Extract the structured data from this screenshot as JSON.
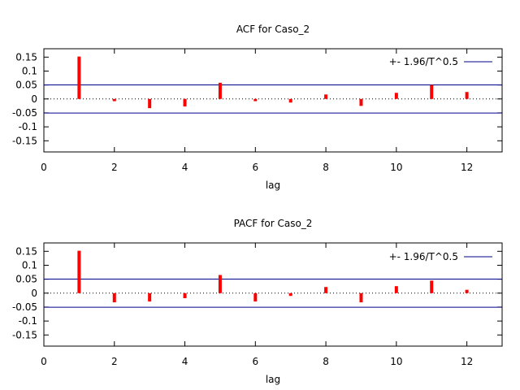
{
  "chart_data": [
    {
      "type": "bar",
      "title": "ACF for Caso_2",
      "xlabel": "lag",
      "ylabel": "",
      "xlim": [
        0,
        13
      ],
      "ylim": [
        -0.19,
        0.18
      ],
      "x_ticks": [
        0,
        2,
        4,
        6,
        8,
        10,
        12
      ],
      "y_ticks": [
        -0.15,
        -0.1,
        -0.05,
        0,
        0.05,
        0.1,
        0.15
      ],
      "y_tick_labels": [
        "-0.15",
        "-0.1",
        "-0.05",
        "0",
        "0.05",
        "0.1",
        "0.15"
      ],
      "x": [
        1,
        2,
        3,
        4,
        5,
        6,
        7,
        8,
        9,
        10,
        11,
        12
      ],
      "values": [
        0.152,
        -0.008,
        -0.033,
        -0.027,
        0.058,
        -0.008,
        -0.013,
        0.016,
        -0.025,
        0.022,
        0.05,
        0.025
      ],
      "bar_color": "#ff0000",
      "band": {
        "label": "+- 1.96/T^0.5",
        "value": 0.0505,
        "color": "#00008b"
      },
      "zero_line": "dotted",
      "legend_position": "top-right",
      "grid": false
    },
    {
      "type": "bar",
      "title": "PACF for Caso_2",
      "xlabel": "lag",
      "ylabel": "",
      "xlim": [
        0,
        13
      ],
      "ylim": [
        -0.19,
        0.18
      ],
      "x_ticks": [
        0,
        2,
        4,
        6,
        8,
        10,
        12
      ],
      "y_ticks": [
        -0.15,
        -0.1,
        -0.05,
        0,
        0.05,
        0.1,
        0.15
      ],
      "y_tick_labels": [
        "-0.15",
        "-0.1",
        "-0.05",
        "0",
        "0.05",
        "0.1",
        "0.15"
      ],
      "x": [
        1,
        2,
        3,
        4,
        5,
        6,
        7,
        8,
        9,
        10,
        11,
        12
      ],
      "values": [
        0.152,
        -0.033,
        -0.03,
        -0.018,
        0.065,
        -0.03,
        -0.01,
        0.022,
        -0.033,
        0.025,
        0.045,
        0.012
      ],
      "bar_color": "#ff0000",
      "band": {
        "label": "+- 1.96/T^0.5",
        "value": 0.0505,
        "color": "#00008b"
      },
      "zero_line": "dotted",
      "legend_position": "top-right",
      "grid": false
    }
  ]
}
